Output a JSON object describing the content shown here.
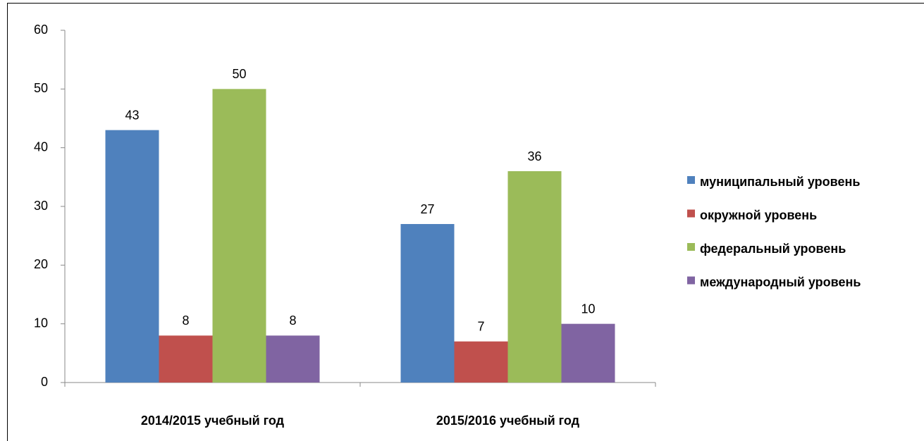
{
  "chart_data": {
    "type": "bar",
    "categories": [
      "2014/2015 учебный год",
      "2015/2016 учебный год"
    ],
    "series": [
      {
        "name": "муниципальный уровень",
        "color": "#4f81bd",
        "values": [
          43,
          27
        ]
      },
      {
        "name": "окружной уровень",
        "color": "#c0504d",
        "values": [
          8,
          7
        ]
      },
      {
        "name": "федеральный уровень",
        "color": "#9bbb59",
        "values": [
          50,
          36
        ]
      },
      {
        "name": "международный уровень",
        "color": "#8064a2",
        "values": [
          8,
          10
        ]
      }
    ],
    "ylim": [
      0,
      60
    ],
    "yticks": [
      0,
      10,
      20,
      30,
      40,
      50,
      60
    ],
    "grid": false,
    "legend": "right"
  }
}
